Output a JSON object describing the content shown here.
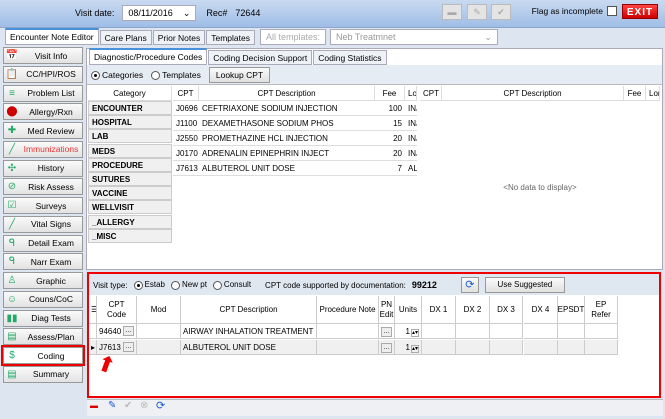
{
  "header": {
    "visit_date_label": "Visit date:",
    "visit_date": "08/11/2016",
    "rec_label": "Rec#",
    "rec_value": "72644",
    "flag_label": "Flag as incomplete",
    "exit_label": "EXIT"
  },
  "tabs": [
    {
      "label": "Encounter Note Editor"
    },
    {
      "label": "Care Plans"
    },
    {
      "label": "Prior Notes"
    },
    {
      "label": "Templates"
    }
  ],
  "templates_filter": {
    "placeholder": "All templates:",
    "value": "Neb Treatmnet"
  },
  "sidebar": {
    "items": [
      {
        "label": "Visit Info",
        "icon": "calendar-icon"
      },
      {
        "label": "CC/HPI/ROS",
        "icon": "clipboard-icon"
      },
      {
        "label": "Problem List",
        "icon": "list-icon"
      },
      {
        "label": "Allergy/Rxn",
        "icon": "allergy-icon"
      },
      {
        "label": "Med Review",
        "icon": "medication-icon"
      },
      {
        "label": "Immunizations",
        "icon": "syringe-icon"
      },
      {
        "label": "History",
        "icon": "family-tree-icon"
      },
      {
        "label": "Risk Assess",
        "icon": "no-smoking-icon"
      },
      {
        "label": "Surveys",
        "icon": "survey-icon"
      },
      {
        "label": "Vital Signs",
        "icon": "thermometer-icon"
      },
      {
        "label": "Detail Exam",
        "icon": "stethoscope-icon"
      },
      {
        "label": "Narr Exam",
        "icon": "stethoscope-icon"
      },
      {
        "label": "Graphic",
        "icon": "body-icon"
      },
      {
        "label": "Couns/CoC",
        "icon": "counselor-icon"
      },
      {
        "label": "Diag Tests",
        "icon": "test-tubes-icon"
      },
      {
        "label": "Assess/Plan",
        "icon": "book-icon"
      },
      {
        "label": "Coding",
        "icon": "dollar-icon"
      },
      {
        "label": "Summary",
        "icon": "document-icon"
      }
    ],
    "active": "Coding"
  },
  "subtabs": [
    {
      "label": "Diagnostic/Procedure Codes"
    },
    {
      "label": "Coding Decision Support"
    },
    {
      "label": "Coding Statistics"
    }
  ],
  "mode": {
    "categories": "Categories",
    "templates": "Templates",
    "selected": "Categories",
    "lookup": "Lookup CPT"
  },
  "categories": {
    "header": "Category",
    "items": [
      "ENCOUNTER",
      "HOSPITAL",
      "LAB",
      "MEDS",
      "PROCEDURE",
      "SUTURES",
      "VACCINE",
      "WELLVISIT",
      "_ALLERGY",
      "_MISC"
    ]
  },
  "cpt_list": {
    "headers": [
      "CPT",
      "CPT Description",
      "Fee",
      "Lor"
    ],
    "rows": [
      [
        "J0696",
        "CEFTRIAXONE SODIUM INJECTION",
        "100",
        "INJ"
      ],
      [
        "J1100",
        "DEXAMETHASONE SODIUM PHOS",
        "15",
        "INJ"
      ],
      [
        "J2550",
        "PROMETHAZINE HCL INJECTION",
        "20",
        "INJ"
      ],
      [
        "J0170",
        "ADRENALIN EPINEPHRIN INJECT",
        "20",
        "INJ"
      ],
      [
        "J7613",
        "ALBUTEROL UNIT DOSE",
        "7",
        "AL"
      ]
    ]
  },
  "selected_list": {
    "headers": [
      "CPT",
      "CPT Description",
      "Fee",
      "Lor"
    ],
    "empty": "<No data to display>"
  },
  "visit": {
    "label": "Visit type:",
    "options": [
      "Estab",
      "New pt",
      "Consult"
    ],
    "selected": "Estab",
    "supported_label": "CPT code supported by documentation:",
    "supported_code": "99212",
    "use_suggested": "Use Suggested"
  },
  "coding_grid": {
    "headers": [
      "CPT Code",
      "Mod",
      "CPT Description",
      "Procedure Note",
      "PN Edit",
      "Units",
      "DX 1",
      "DX 2",
      "DX 3",
      "DX 4",
      "EPSDT",
      "EP Refer"
    ],
    "rows": [
      {
        "cpt": "94640",
        "mod": "",
        "desc": "AIRWAY INHALATION TREATMENT",
        "units": "1"
      },
      {
        "cpt": "J7613",
        "mod": "",
        "desc": "ALBUTEROL UNIT DOSE",
        "units": "1",
        "current": true
      }
    ]
  },
  "colors": {
    "highlight": "#e00000",
    "accent": "#4a90d9"
  }
}
